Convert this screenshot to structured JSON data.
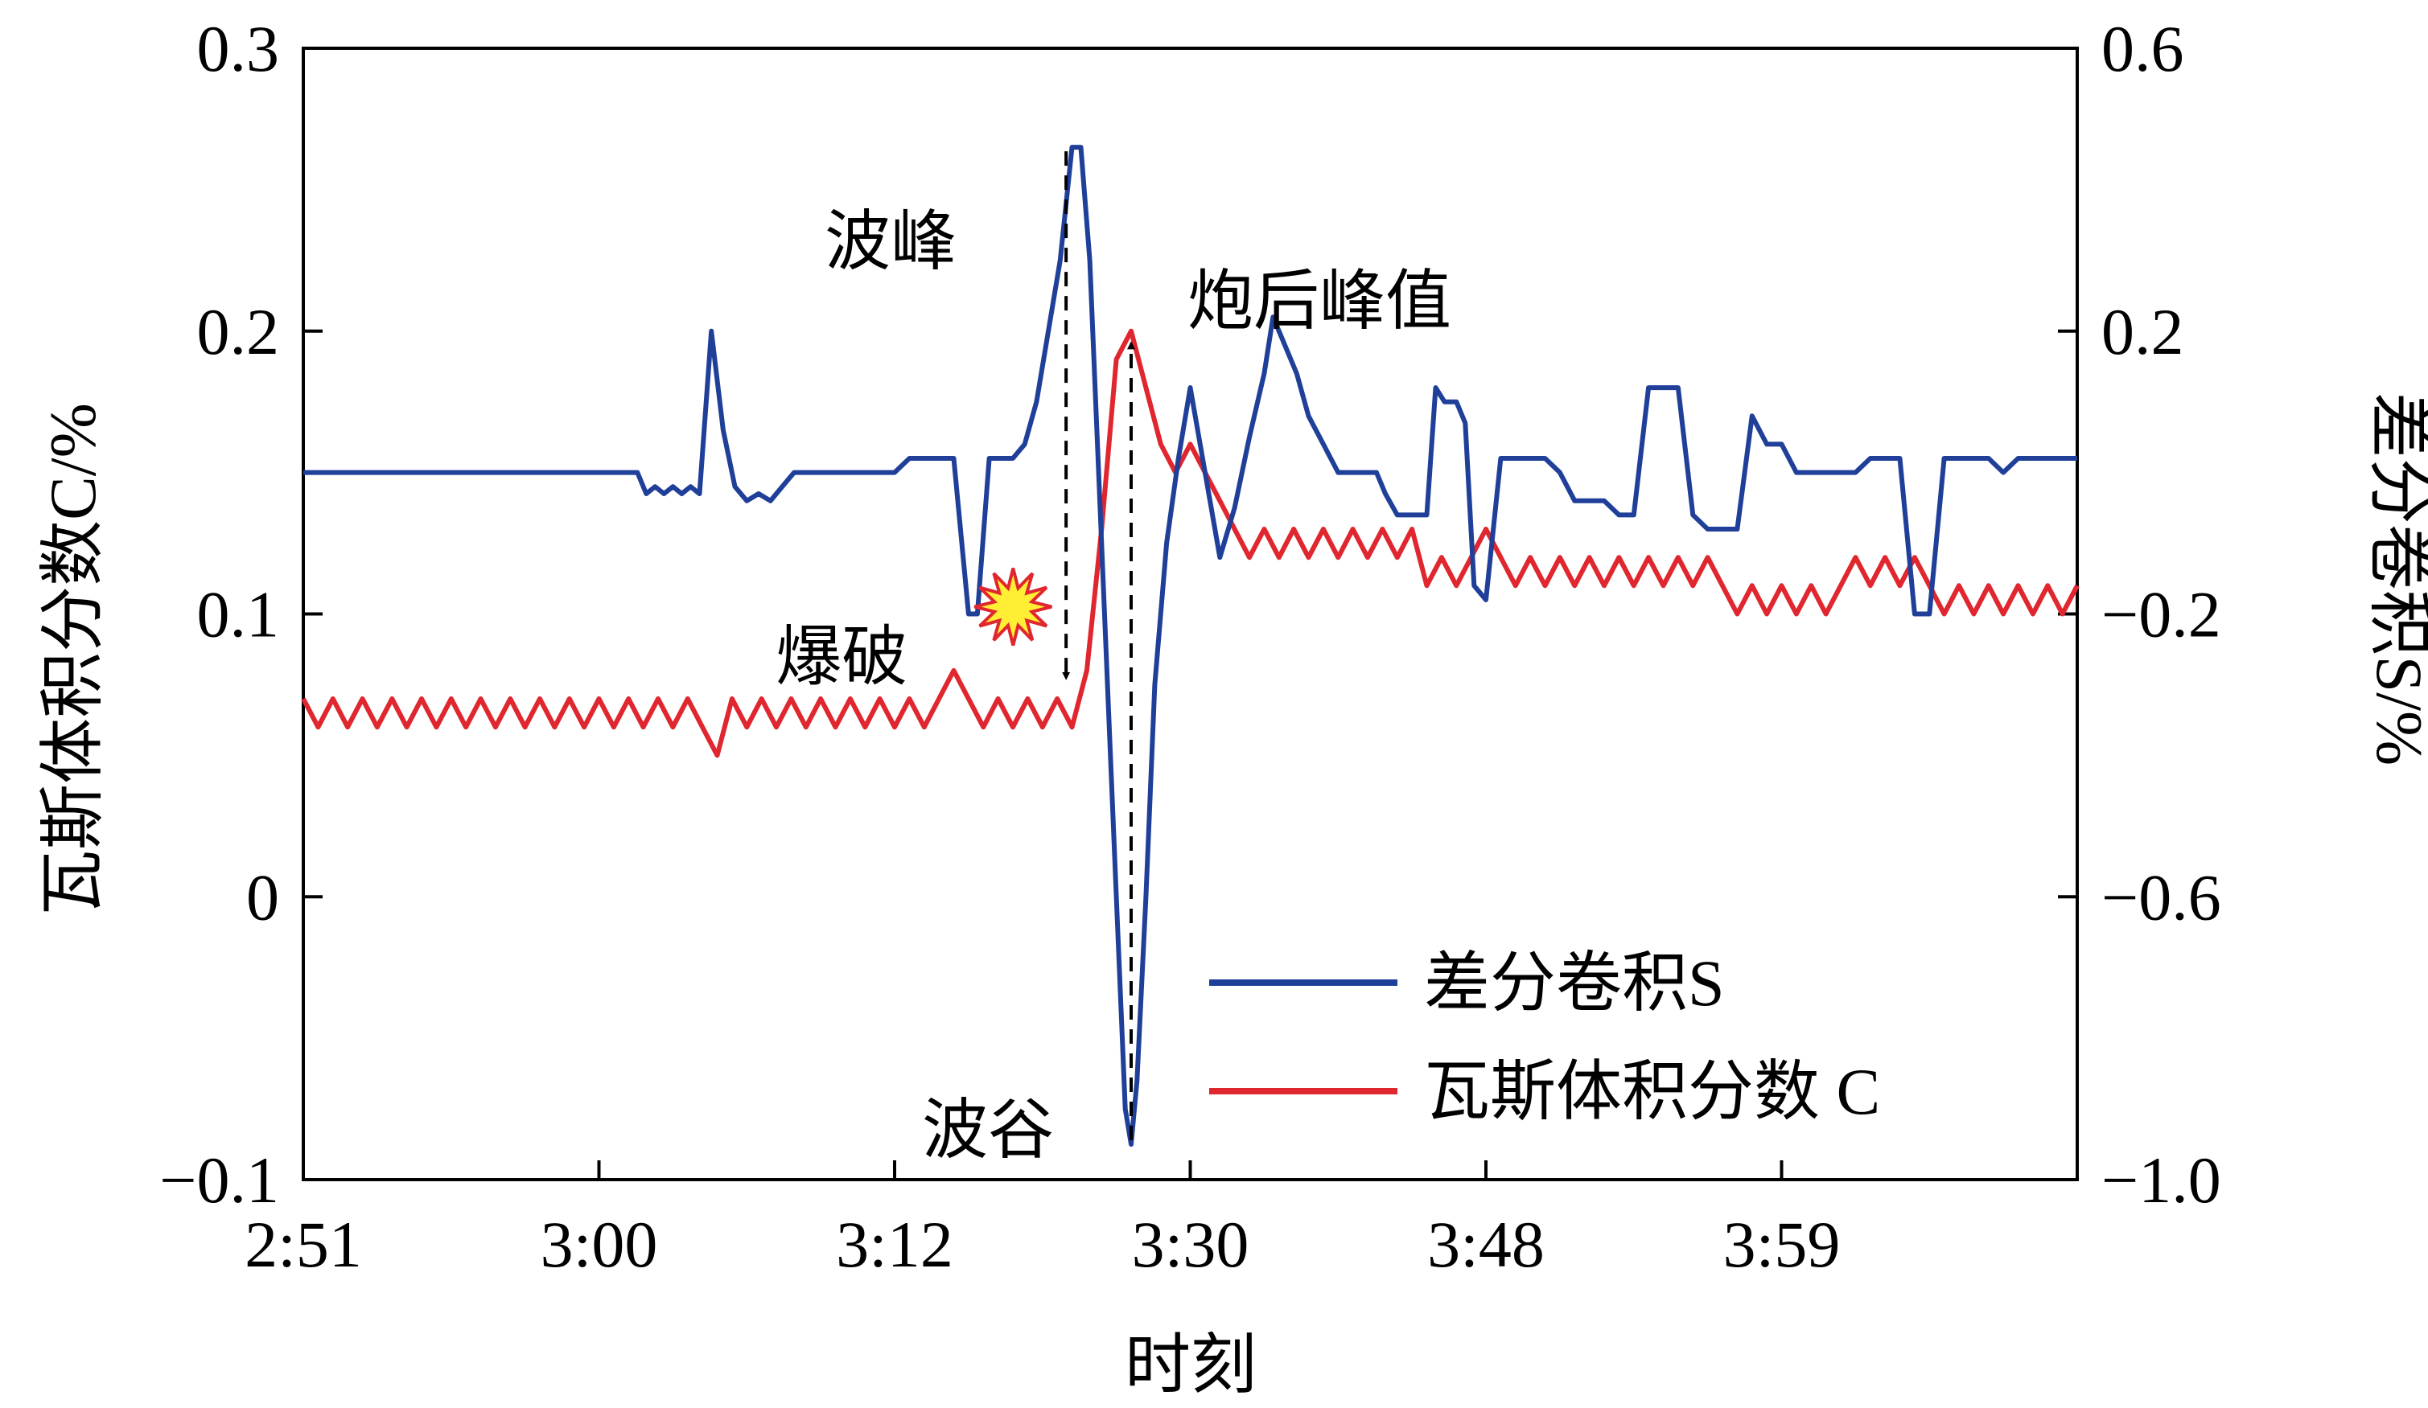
{
  "chart_data": {
    "type": "line",
    "xlabel": "时刻",
    "y_left_label": "瓦斯体积分数C/%",
    "y_right_label": "差分卷积S/%",
    "x_ticks": [
      "2:51",
      "3:00",
      "3:12",
      "3:30",
      "3:48",
      "3:59"
    ],
    "x_range": [
      0,
      60
    ],
    "y_left_range": [
      -0.1,
      0.3
    ],
    "y_left_ticks": [
      "-0.1",
      "0",
      "0.1",
      "0.2",
      "0.3"
    ],
    "y_right_range": [
      -1.0,
      0.6
    ],
    "y_right_ticks": [
      "-1.0",
      "-0.6",
      "-0.2",
      "0.2",
      "0.6"
    ],
    "legend_position": "bottom-right",
    "series": [
      {
        "name": "差分卷积S",
        "axis": "right",
        "color": "#1f3f99",
        "x": [
          0,
          11.3,
          11.6,
          11.9,
          12.2,
          12.5,
          12.8,
          13.1,
          13.4,
          13.8,
          14.2,
          14.6,
          15.0,
          15.4,
          15.8,
          16.2,
          16.6,
          17.0,
          17.5,
          18.0,
          18.5,
          19.0,
          19.5,
          20.0,
          20.5,
          21.0,
          21.5,
          22.0,
          22.5,
          22.8,
          23.2,
          23.6,
          24.0,
          24.4,
          24.8,
          25.2,
          25.6,
          26.0,
          26.3,
          26.6,
          26.9,
          27.2,
          27.5,
          27.8,
          28.0,
          28.2,
          28.5,
          28.8,
          29.2,
          29.6,
          30.0,
          30.5,
          31.0,
          31.5,
          32.0,
          32.5,
          32.8,
          33.2,
          33.6,
          34.0,
          34.5,
          35.0,
          35.5,
          36.0,
          36.3,
          36.6,
          37.0,
          37.5,
          38.0,
          38.3,
          38.6,
          39.0,
          39.3,
          39.6,
          40.0,
          40.5,
          41.0,
          41.5,
          42.0,
          42.5,
          43.0,
          43.5,
          44.0,
          44.5,
          45.0,
          45.5,
          46.0,
          46.5,
          47.0,
          47.5,
          48.0,
          48.5,
          49.0,
          49.5,
          50.0,
          50.5,
          51.0,
          51.5,
          52.0,
          52.5,
          53.0,
          53.5,
          54.0,
          54.5,
          55.0,
          55.5,
          56.0,
          56.5,
          57.0,
          57.5,
          58.0,
          58.5,
          59.0,
          59.5,
          60.0
        ],
        "y": [
          0.0,
          0.0,
          -0.03,
          -0.02,
          -0.03,
          -0.02,
          -0.03,
          -0.02,
          -0.03,
          0.2,
          0.06,
          -0.02,
          -0.04,
          -0.03,
          -0.04,
          -0.02,
          0.0,
          0.0,
          0.0,
          0.0,
          0.0,
          0.0,
          0.0,
          0.0,
          0.02,
          0.02,
          0.02,
          0.02,
          -0.2,
          -0.2,
          0.02,
          0.02,
          0.02,
          0.04,
          0.1,
          0.2,
          0.3,
          0.46,
          0.46,
          0.3,
          0.0,
          -0.3,
          -0.6,
          -0.9,
          -0.95,
          -0.86,
          -0.6,
          -0.3,
          -0.1,
          0.02,
          0.12,
          0.0,
          -0.12,
          -0.05,
          0.05,
          0.14,
          0.22,
          0.18,
          0.14,
          0.08,
          0.04,
          0.0,
          0.0,
          0.0,
          0.0,
          -0.03,
          -0.06,
          -0.06,
          -0.06,
          0.12,
          0.1,
          0.1,
          0.07,
          -0.16,
          -0.18,
          0.02,
          0.02,
          0.02,
          0.02,
          0.0,
          -0.04,
          -0.04,
          -0.04,
          -0.06,
          -0.06,
          0.12,
          0.12,
          0.12,
          -0.06,
          -0.08,
          -0.08,
          -0.08,
          0.08,
          0.04,
          0.04,
          0.0,
          0.0,
          0.0,
          0.0,
          0.0,
          0.02,
          0.02,
          0.02,
          -0.2,
          -0.2,
          0.02,
          0.02,
          0.02,
          0.02,
          0.0,
          0.02,
          0.02,
          0.02,
          0.02,
          0.02
        ]
      },
      {
        "name": "瓦斯体积分数 C",
        "axis": "left",
        "color": "#e0262e",
        "x": [
          0,
          0.5,
          1.0,
          1.5,
          2.0,
          2.5,
          3.0,
          3.5,
          4.0,
          4.5,
          5.0,
          5.5,
          6.0,
          6.5,
          7.0,
          7.5,
          8.0,
          8.5,
          9.0,
          9.5,
          10.0,
          10.5,
          11.0,
          11.5,
          12.0,
          12.5,
          13.0,
          13.5,
          14.0,
          14.5,
          15.0,
          15.5,
          16.0,
          16.5,
          17.0,
          17.5,
          18.0,
          18.5,
          19.0,
          19.5,
          20.0,
          20.5,
          21.0,
          21.5,
          22.0,
          22.5,
          23.0,
          23.5,
          24.0,
          24.5,
          25.0,
          25.5,
          26.0,
          26.5,
          27.0,
          27.5,
          28.0,
          28.5,
          29.0,
          29.5,
          30.0,
          30.5,
          31.0,
          31.5,
          32.0,
          32.5,
          33.0,
          33.5,
          34.0,
          34.5,
          35.0,
          35.5,
          36.0,
          36.5,
          37.0,
          37.5,
          38.0,
          38.5,
          39.0,
          39.5,
          40.0,
          40.5,
          41.0,
          41.5,
          42.0,
          42.5,
          43.0,
          43.5,
          44.0,
          44.5,
          45.0,
          45.5,
          46.0,
          46.5,
          47.0,
          47.5,
          48.0,
          48.5,
          49.0,
          49.5,
          50.0,
          50.5,
          51.0,
          51.5,
          52.0,
          52.5,
          53.0,
          53.5,
          54.0,
          54.5,
          55.0,
          55.5,
          56.0,
          56.5,
          57.0,
          57.5,
          58.0,
          58.5,
          59.0,
          59.5,
          60.0
        ],
        "y": [
          0.07,
          0.06,
          0.07,
          0.06,
          0.07,
          0.06,
          0.07,
          0.06,
          0.07,
          0.06,
          0.07,
          0.06,
          0.07,
          0.06,
          0.07,
          0.06,
          0.07,
          0.06,
          0.07,
          0.06,
          0.07,
          0.06,
          0.07,
          0.06,
          0.07,
          0.06,
          0.07,
          0.06,
          0.05,
          0.07,
          0.06,
          0.07,
          0.06,
          0.07,
          0.06,
          0.07,
          0.06,
          0.07,
          0.06,
          0.07,
          0.06,
          0.07,
          0.06,
          0.07,
          0.08,
          0.07,
          0.06,
          0.07,
          0.06,
          0.07,
          0.06,
          0.07,
          0.06,
          0.08,
          0.13,
          0.19,
          0.2,
          0.18,
          0.16,
          0.15,
          0.16,
          0.15,
          0.14,
          0.13,
          0.12,
          0.13,
          0.12,
          0.13,
          0.12,
          0.13,
          0.12,
          0.13,
          0.12,
          0.13,
          0.12,
          0.13,
          0.11,
          0.12,
          0.11,
          0.12,
          0.13,
          0.12,
          0.11,
          0.12,
          0.11,
          0.12,
          0.11,
          0.12,
          0.11,
          0.12,
          0.11,
          0.12,
          0.11,
          0.12,
          0.11,
          0.12,
          0.11,
          0.1,
          0.11,
          0.1,
          0.11,
          0.1,
          0.11,
          0.1,
          0.11,
          0.12,
          0.11,
          0.12,
          0.11,
          0.12,
          0.11,
          0.1,
          0.11,
          0.1,
          0.11,
          0.1,
          0.11,
          0.1,
          0.11,
          0.1,
          0.11
        ]
      }
    ],
    "annotations": [
      {
        "text": "波峰",
        "x": 25.8,
        "y_right": 0.46
      },
      {
        "text": "炮后峰值",
        "x": 28.0,
        "y_left": 0.2
      },
      {
        "text": "爆破",
        "x": 23.6,
        "y_left": 0.094
      },
      {
        "text": "波谷",
        "x": 28.0,
        "y_right": -0.95
      }
    ]
  }
}
